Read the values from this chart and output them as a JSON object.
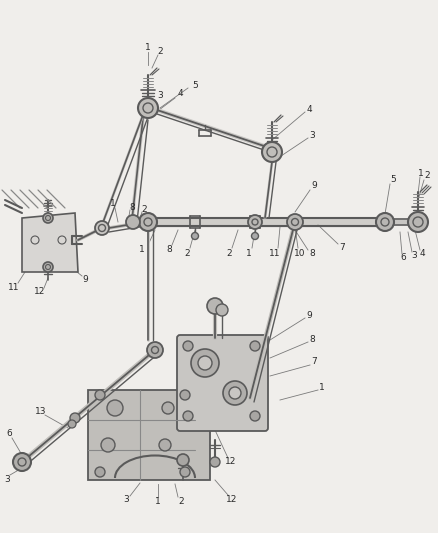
{
  "bg_color": "#f0eeeb",
  "line_color": "#5a5a5a",
  "text_color": "#2a2a2a",
  "label_color": "#3a3a3a",
  "fig_width": 4.38,
  "fig_height": 5.33,
  "dpi": 100,
  "callout_color": "#7a7a7a"
}
